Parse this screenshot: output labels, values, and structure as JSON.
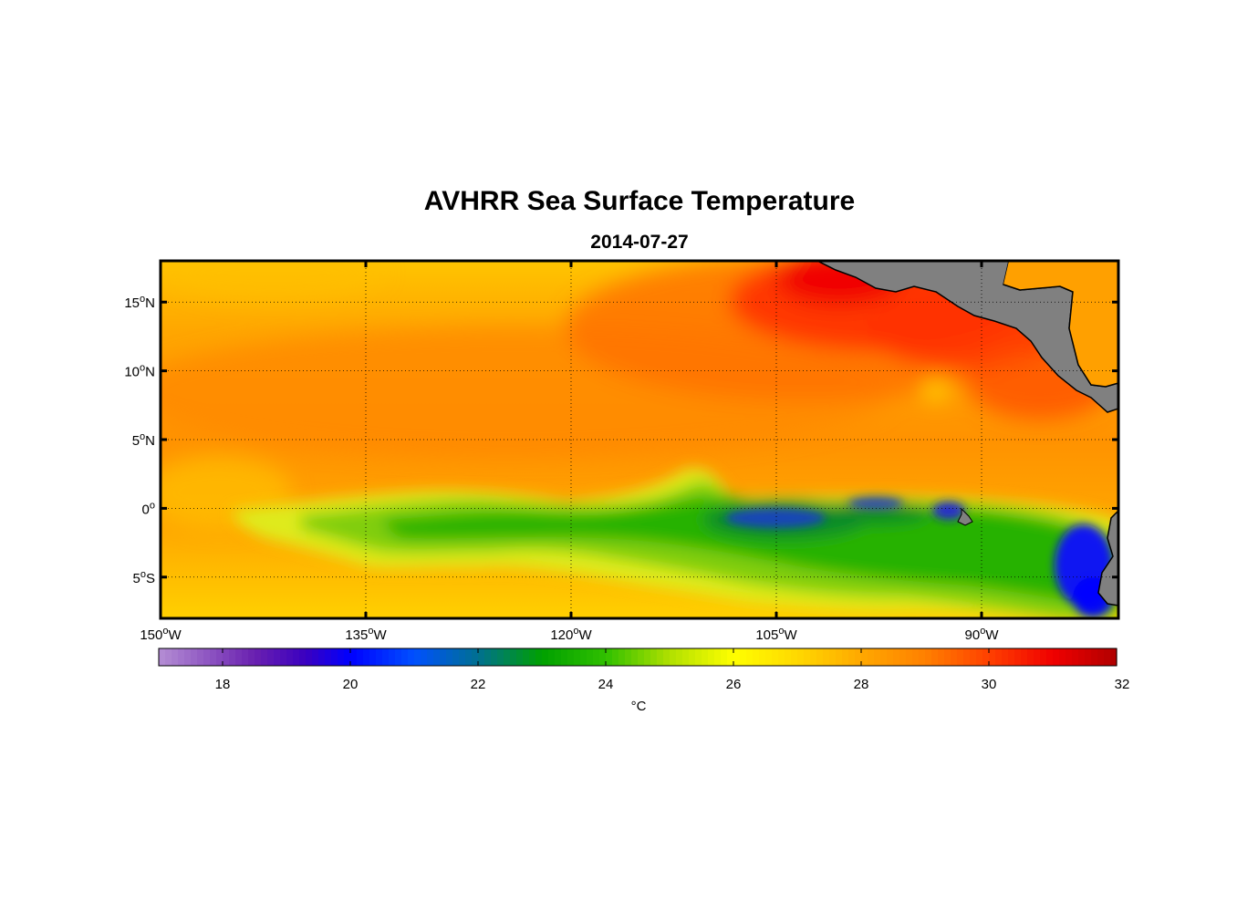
{
  "title": "AVHRR Sea Surface Temperature",
  "date": "2014-07-27",
  "map": {
    "lon_range": [
      -150,
      -80
    ],
    "lat_range": [
      -8,
      18
    ],
    "lat_ticks": [
      {
        "value": 15,
        "num": "15",
        "hemi": "N"
      },
      {
        "value": 10,
        "num": "10",
        "hemi": "N"
      },
      {
        "value": 5,
        "num": "5",
        "hemi": "N"
      },
      {
        "value": 0,
        "num": "0",
        "hemi": ""
      },
      {
        "value": -5,
        "num": "5",
        "hemi": "S"
      }
    ],
    "lon_ticks": [
      {
        "value": -150,
        "num": "150",
        "hemi": "W"
      },
      {
        "value": -135,
        "num": "135",
        "hemi": "W"
      },
      {
        "value": -120,
        "num": "120",
        "hemi": "W"
      },
      {
        "value": -105,
        "num": "105",
        "hemi": "W"
      },
      {
        "value": -90,
        "num": "90",
        "hemi": "W"
      }
    ],
    "land_color": "#808080"
  },
  "colorbar": {
    "min": 17,
    "max": 32,
    "ticks": [
      "18",
      "20",
      "22",
      "24",
      "26",
      "28",
      "30",
      "32"
    ],
    "tick_values": [
      18,
      20,
      22,
      24,
      26,
      28,
      30,
      32
    ],
    "unit": "°C",
    "stops": [
      {
        "v": 17,
        "c": "#b48ed4"
      },
      {
        "v": 18.5,
        "c": "#6a20b0"
      },
      {
        "v": 19.3,
        "c": "#3a00c0"
      },
      {
        "v": 20,
        "c": "#0000ff"
      },
      {
        "v": 21,
        "c": "#0050ff"
      },
      {
        "v": 22,
        "c": "#007090"
      },
      {
        "v": 23,
        "c": "#00a000"
      },
      {
        "v": 24,
        "c": "#30c000"
      },
      {
        "v": 25,
        "c": "#b0e000"
      },
      {
        "v": 26,
        "c": "#ffff00"
      },
      {
        "v": 27,
        "c": "#ffd800"
      },
      {
        "v": 28,
        "c": "#ffa800"
      },
      {
        "v": 29,
        "c": "#ff8000"
      },
      {
        "v": 30,
        "c": "#ff4000"
      },
      {
        "v": 31,
        "c": "#f00000"
      },
      {
        "v": 32,
        "c": "#b00000"
      }
    ]
  }
}
